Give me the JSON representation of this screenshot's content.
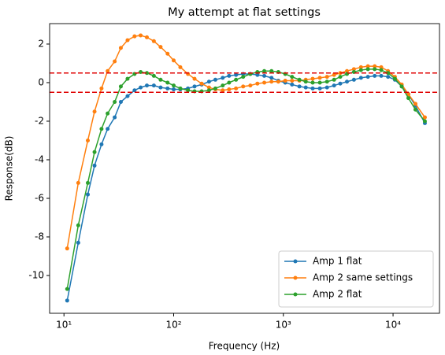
{
  "chart_data": {
    "type": "line",
    "title": "My attempt at flat settings",
    "xlabel": "Frequency (Hz)",
    "ylabel": "Response(dB)",
    "xscale": "log",
    "x": [
      10.7,
      13.5,
      16.5,
      19,
      22,
      25,
      29,
      33,
      38,
      44,
      50,
      57,
      66,
      76,
      88,
      100,
      115,
      135,
      155,
      180,
      210,
      240,
      280,
      320,
      370,
      430,
      500,
      580,
      670,
      780,
      900,
      1040,
      1200,
      1400,
      1600,
      1850,
      2150,
      2500,
      2900,
      3300,
      3800,
      4400,
      5100,
      5900,
      6800,
      7800,
      9000,
      10400,
      12000,
      13800,
      16000,
      19500
    ],
    "series": [
      {
        "name": "Amp 1 flat",
        "color": "#1f77b4",
        "values": [
          -11.3,
          -8.3,
          -5.8,
          -4.3,
          -3.2,
          -2.4,
          -1.8,
          -1.0,
          -0.7,
          -0.4,
          -0.25,
          -0.15,
          -0.15,
          -0.25,
          -0.3,
          -0.35,
          -0.35,
          -0.3,
          -0.2,
          -0.1,
          0.05,
          0.15,
          0.25,
          0.35,
          0.4,
          0.45,
          0.45,
          0.4,
          0.35,
          0.25,
          0.1,
          0.0,
          -0.1,
          -0.2,
          -0.25,
          -0.3,
          -0.3,
          -0.25,
          -0.15,
          -0.05,
          0.05,
          0.15,
          0.25,
          0.3,
          0.35,
          0.35,
          0.3,
          0.15,
          -0.2,
          -0.6,
          -1.2,
          -2.1
        ]
      },
      {
        "name": "Amp 2 same settings",
        "color": "#ff7f0e",
        "values": [
          -8.6,
          -5.2,
          -3.0,
          -1.5,
          -0.3,
          0.6,
          1.1,
          1.8,
          2.2,
          2.4,
          2.45,
          2.35,
          2.15,
          1.85,
          1.5,
          1.15,
          0.8,
          0.45,
          0.2,
          -0.05,
          -0.25,
          -0.35,
          -0.4,
          -0.35,
          -0.3,
          -0.2,
          -0.15,
          -0.05,
          0.0,
          0.05,
          0.05,
          0.1,
          0.1,
          0.1,
          0.15,
          0.2,
          0.25,
          0.3,
          0.4,
          0.5,
          0.6,
          0.7,
          0.8,
          0.85,
          0.85,
          0.8,
          0.6,
          0.3,
          -0.1,
          -0.6,
          -1.1,
          -1.8
        ]
      },
      {
        "name": "Amp 2 flat",
        "color": "#2ca02c",
        "values": [
          -10.7,
          -7.4,
          -5.2,
          -3.6,
          -2.4,
          -1.6,
          -1.0,
          -0.2,
          0.2,
          0.45,
          0.55,
          0.5,
          0.35,
          0.15,
          0.0,
          -0.15,
          -0.3,
          -0.4,
          -0.45,
          -0.45,
          -0.4,
          -0.3,
          -0.15,
          0.0,
          0.15,
          0.3,
          0.45,
          0.55,
          0.6,
          0.6,
          0.55,
          0.45,
          0.3,
          0.15,
          0.05,
          0.0,
          0.0,
          0.05,
          0.15,
          0.3,
          0.45,
          0.55,
          0.65,
          0.7,
          0.7,
          0.65,
          0.5,
          0.2,
          -0.2,
          -0.8,
          -1.4,
          -2.0
        ]
      }
    ],
    "hlines": [
      0.5,
      -0.5
    ],
    "hline_color": "#e00000",
    "xlim": [
      7.4,
      26500
    ],
    "ylim": [
      -11.96,
      3.06
    ],
    "xticks": [
      {
        "value": 10,
        "label": "10¹"
      },
      {
        "value": 100,
        "label": "10²"
      },
      {
        "value": 1000,
        "label": "10³"
      },
      {
        "value": 10000,
        "label": "10⁴"
      }
    ],
    "yticks": [
      -10,
      -8,
      -6,
      -4,
      -2,
      0,
      2
    ],
    "grid": false,
    "legend": "lower right"
  }
}
